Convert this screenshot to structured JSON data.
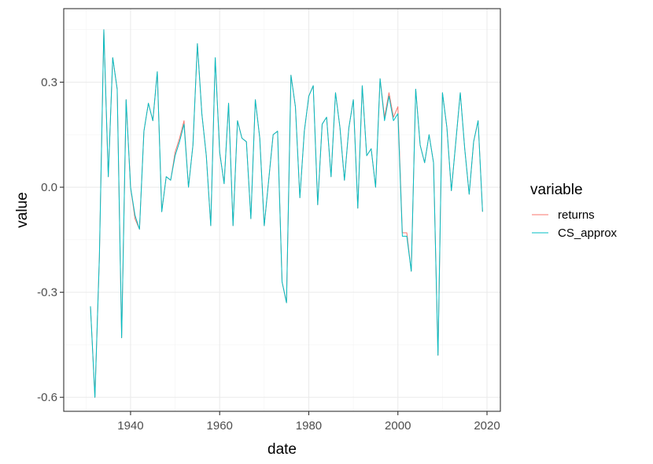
{
  "chart_data": {
    "type": "line",
    "xlabel": "date",
    "ylabel": "value",
    "xlim": [
      1925,
      2023
    ],
    "ylim": [
      -0.64,
      0.51
    ],
    "x_ticks": [
      1940,
      1960,
      1980,
      2000,
      2020
    ],
    "x_tick_labels": [
      "1940",
      "1960",
      "1980",
      "2000",
      "2020"
    ],
    "y_ticks": [
      -0.6,
      -0.3,
      0.0,
      0.3
    ],
    "y_tick_labels": [
      "-0.6",
      "-0.3",
      "0.0",
      "0.3"
    ],
    "grid": true,
    "legend": {
      "title": "variable",
      "position": "right"
    },
    "x": [
      1931,
      1932,
      1933,
      1934,
      1935,
      1936,
      1937,
      1938,
      1939,
      1940,
      1941,
      1942,
      1943,
      1944,
      1945,
      1946,
      1947,
      1948,
      1949,
      1950,
      1951,
      1952,
      1953,
      1954,
      1955,
      1956,
      1957,
      1958,
      1959,
      1960,
      1961,
      1962,
      1963,
      1964,
      1965,
      1966,
      1967,
      1968,
      1969,
      1970,
      1971,
      1972,
      1973,
      1974,
      1975,
      1976,
      1977,
      1978,
      1979,
      1980,
      1981,
      1982,
      1983,
      1984,
      1985,
      1986,
      1987,
      1988,
      1989,
      1990,
      1991,
      1992,
      1993,
      1994,
      1995,
      1996,
      1997,
      1998,
      1999,
      2000,
      2001,
      2002,
      2003,
      2004,
      2005,
      2006,
      2007,
      2008,
      2009,
      2010,
      2011,
      2012,
      2013,
      2014,
      2015,
      2016,
      2017,
      2018,
      2019
    ],
    "series": [
      {
        "name": "returns",
        "color": "#F8766D",
        "values": [
          -0.34,
          -0.6,
          -0.2,
          0.45,
          0.03,
          0.37,
          0.28,
          -0.43,
          0.25,
          0.0,
          -0.09,
          -0.12,
          0.16,
          0.24,
          0.19,
          0.33,
          -0.07,
          0.03,
          0.02,
          0.1,
          0.14,
          0.19,
          0.0,
          0.12,
          0.41,
          0.21,
          0.09,
          -0.11,
          0.37,
          0.1,
          0.01,
          0.24,
          -0.11,
          0.19,
          0.14,
          0.13,
          -0.09,
          0.25,
          0.14,
          -0.11,
          0.02,
          0.15,
          0.16,
          -0.27,
          -0.33,
          0.32,
          0.23,
          -0.03,
          0.16,
          0.26,
          0.29,
          -0.05,
          0.18,
          0.2,
          0.03,
          0.27,
          0.17,
          0.02,
          0.17,
          0.25,
          -0.06,
          0.29,
          0.09,
          0.11,
          0.0,
          0.31,
          0.2,
          0.27,
          0.2,
          0.23,
          -0.13,
          -0.13,
          -0.24,
          0.28,
          0.12,
          0.07,
          0.15,
          0.07,
          -0.48,
          0.27,
          0.17,
          -0.01,
          0.13,
          0.27,
          0.11,
          -0.02,
          0.13,
          0.19,
          -0.07
        ]
      },
      {
        "name": "CS_approx",
        "color": "#00BFC4",
        "values": [
          -0.34,
          -0.6,
          -0.2,
          0.45,
          0.03,
          0.37,
          0.28,
          -0.43,
          0.25,
          0.0,
          -0.08,
          -0.12,
          0.16,
          0.24,
          0.19,
          0.33,
          -0.07,
          0.03,
          0.02,
          0.09,
          0.13,
          0.18,
          0.0,
          0.12,
          0.41,
          0.21,
          0.09,
          -0.11,
          0.37,
          0.1,
          0.01,
          0.24,
          -0.11,
          0.19,
          0.14,
          0.13,
          -0.09,
          0.25,
          0.14,
          -0.11,
          0.02,
          0.15,
          0.16,
          -0.27,
          -0.33,
          0.32,
          0.23,
          -0.03,
          0.16,
          0.26,
          0.29,
          -0.05,
          0.18,
          0.2,
          0.03,
          0.27,
          0.17,
          0.02,
          0.17,
          0.25,
          -0.06,
          0.29,
          0.09,
          0.11,
          0.0,
          0.31,
          0.19,
          0.26,
          0.19,
          0.21,
          -0.14,
          -0.14,
          -0.24,
          0.28,
          0.12,
          0.07,
          0.15,
          0.07,
          -0.48,
          0.27,
          0.17,
          -0.01,
          0.13,
          0.27,
          0.11,
          -0.02,
          0.13,
          0.19,
          -0.07
        ]
      }
    ]
  }
}
